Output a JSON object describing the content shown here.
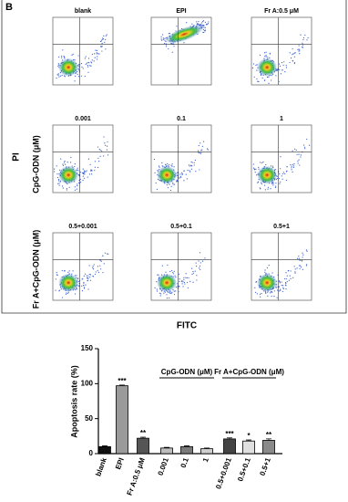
{
  "panel_label": "B",
  "flow_cytometry": {
    "y_label": "PI",
    "x_label": "FITC",
    "row_labels": [
      "CpG-ODN (μM)",
      "Fr A+CpG-ODN (μM)"
    ],
    "plot_titles": [
      "blank",
      "EPI",
      "Fr A:0.5 μM",
      "0.001",
      "0.1",
      "1",
      "0.5+0.001",
      "0.5+0.1",
      "0.5+1"
    ]
  },
  "chart_data": {
    "type": "bar",
    "y_label": "Apoptosis rate (%)",
    "categories": [
      "blank",
      "EPI",
      "Fr A:0.5 μM",
      "0.001",
      "0.1",
      "1",
      "0.5+0.001",
      "0.5+0.1",
      "0.5+1"
    ],
    "values": [
      10,
      97,
      22,
      8,
      10,
      7,
      21,
      18,
      19
    ],
    "errors": [
      1,
      1,
      1.5,
      1,
      1,
      1,
      1.5,
      1.5,
      2
    ],
    "significance": [
      null,
      "***",
      "**",
      null,
      null,
      null,
      "***",
      "*",
      "**"
    ],
    "colors": [
      "#111111",
      "#9a9a9a",
      "#555555",
      "#bdbdbd",
      "#7a7a7a",
      "#cfcfcf",
      "#444444",
      "#e0e0e0",
      "#8a8a8a"
    ],
    "groups": [
      {
        "label": "CpG-ODN (μM)",
        "start": 3,
        "end": 5
      },
      {
        "label": "Fr A+CpG-ODN (μM)",
        "start": 6,
        "end": 8
      }
    ],
    "ylim": [
      0,
      150
    ],
    "yticks": [
      0,
      50,
      100,
      150
    ]
  }
}
